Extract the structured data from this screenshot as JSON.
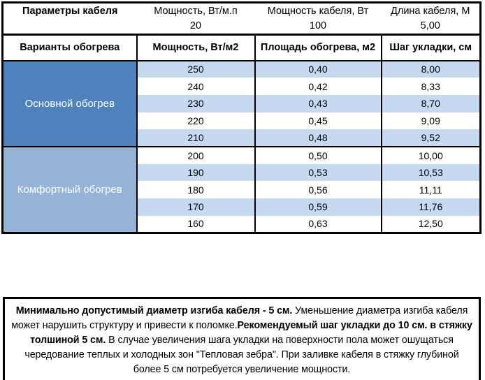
{
  "params": {
    "title": "Параметры кабеля",
    "cols": [
      {
        "label": "Мощность, Вт/м.п",
        "value": "20"
      },
      {
        "label": "Мощность кабеля, Вт",
        "value": "100"
      },
      {
        "label": "Длина кабеля, М",
        "value": "5,00"
      }
    ]
  },
  "heat_table": {
    "headers": [
      "Варианты обогрева",
      "Мощность, Вт/м2",
      "Площадь обогрева, м2",
      "Шаг укладки, см"
    ],
    "groups": [
      {
        "name": "Основной обогрев",
        "rows": [
          [
            "250",
            "0,40",
            "8,00"
          ],
          [
            "240",
            "0,42",
            "8,33"
          ],
          [
            "230",
            "0,43",
            "8,70"
          ],
          [
            "220",
            "0,45",
            "9,09"
          ],
          [
            "210",
            "0,48",
            "9,52"
          ]
        ]
      },
      {
        "name": "Комфортный обогрев",
        "rows": [
          [
            "200",
            "0,50",
            "10,00"
          ],
          [
            "190",
            "0,53",
            "10,53"
          ],
          [
            "180",
            "0,56",
            "11,11"
          ],
          [
            "170",
            "0,59",
            "11,76"
          ],
          [
            "160",
            "0,63",
            "12,50"
          ]
        ]
      }
    ]
  },
  "note": {
    "segments": [
      {
        "text": "Минимально допустимый диаметр изгиба кабеля - 5 см.",
        "bold": true
      },
      {
        "text": "  Уменьшение диаметра изгиба кабеля может нарушить структуру и привести к поломке.",
        "bold": false
      },
      {
        "text": "Рекомендуемый шаг укладки до 10 см. в стяжку толшиной 5 см.",
        "bold": true
      },
      {
        "text": " В  случае увеличения шага укладки на поверхности пола может ошущаться чередование теплых и холодных зон \"Тепловая зебра\". При заливке кабеля в стяжку глубиной более 5 см потребуется увеличение мощности.",
        "bold": false
      }
    ]
  },
  "colors": {
    "table_border": "#000000",
    "group_primary": "#4F81BD",
    "group_secondary": "#95B3D7",
    "stripe": "#C5D9F1",
    "row_white": "#FFFFFF",
    "text": "#000000",
    "group_text": "#FFFFFF"
  }
}
